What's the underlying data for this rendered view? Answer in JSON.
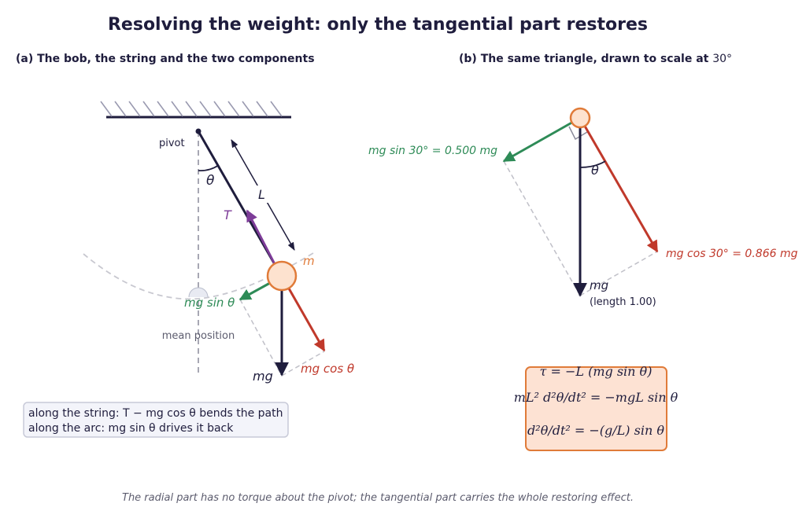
{
  "title": "Resolving the weight: only the tangential part restores",
  "panel_a": {
    "heading": "(a)  The bob, the string and the two components",
    "pivot_label": "pivot",
    "theta_label": "θ",
    "length_label": "L",
    "tension_label": "T",
    "mass_label": "m",
    "mean_position_label": "mean position",
    "weight_label": "mg",
    "tangential_label": "mg sin θ",
    "radial_label": "mg cos θ",
    "note_line1": "along the string:  T − mg cos θ  bends the path",
    "note_line2": "along the arc:      mg sin θ  drives it back"
  },
  "panel_b": {
    "heading_prefix": "(b)  The same triangle, drawn to scale at ",
    "heading_angle": "30°",
    "theta_label": "θ",
    "tangential_label": "mg sin 30° = 0.500 mg",
    "radial_label": "mg cos 30° = 0.866 mg",
    "weight_label": "mg",
    "weight_note": "(length 1.00)",
    "eq1": "τ = −L (mg sin θ)",
    "eq2": "mL² d²θ/dt² = −mgL sin θ",
    "eq3": "d²θ/dt² = −(g/L) sin θ"
  },
  "caption": "The radial part has no torque about the pivot; the tangential part carries the whole restoring effect.",
  "colors": {
    "navy": "#1f1d3d",
    "green": "#2e8b57",
    "red": "#c0392b",
    "purple": "#7d3c98",
    "bob_fill": "#fde2cf",
    "bob_stroke": "#e07b39",
    "box_fill": "#fde2d3",
    "note_fill": "#f3f4fa"
  }
}
